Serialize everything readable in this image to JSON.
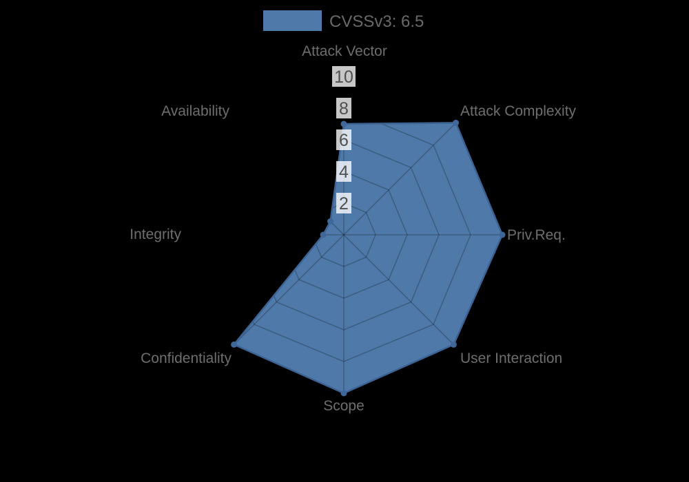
{
  "page": {
    "background": "#000000"
  },
  "legend": {
    "label": "CVSSv3: 6.5",
    "swatch_color": "#4e79a8"
  },
  "chart_data": {
    "type": "radar",
    "title": "",
    "categories": [
      "Attack Vector",
      "Attack Complexity",
      "Priv.Req.",
      "User Interaction",
      "Scope",
      "Confidentiality",
      "Integrity",
      "Availability"
    ],
    "series": [
      {
        "name": "CVSSv3: 6.5",
        "values": [
          7.0,
          10,
          10,
          9.8,
          10,
          9.8,
          1.3,
          1.2
        ]
      }
    ],
    "max": 10,
    "ticks": [
      2,
      4,
      6,
      8,
      10
    ],
    "grid": "octagonal-web, dark translucent lines drawn over fill",
    "legend_position": "top-center",
    "colors": {
      "fill": "#4e79a8",
      "stroke": "#3c6394",
      "marker": "#40679a",
      "grid_line": "rgba(0,0,0,0.22)",
      "label_text": "#6e6e6e",
      "tick_text": "#4f4f4f",
      "tick_backdrop": "rgba(255,255,255,0.78)"
    }
  }
}
